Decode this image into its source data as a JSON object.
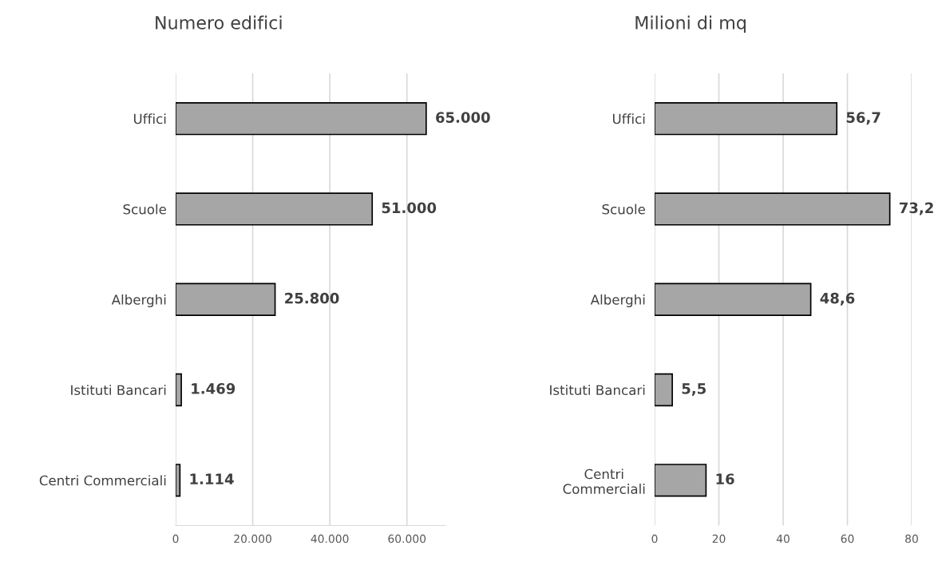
{
  "chart_data": [
    {
      "type": "bar",
      "orientation": "horizontal",
      "title": "Numero edifici",
      "categories": [
        "Uffici",
        "Scuole",
        "Alberghi",
        "Istituti Bancari",
        "Centri Commerciali"
      ],
      "values": [
        65000,
        51000,
        25800,
        1469,
        1114
      ],
      "value_labels": [
        "65.000",
        "51.000",
        "25.800",
        "1.469",
        "1.114"
      ],
      "color": "#a6a6a6",
      "xlim": [
        0,
        70000
      ],
      "xticks": [
        0,
        {
          "value": 20000,
          "label": "20.000"
        },
        {
          "value": 40000,
          "label": "40.000"
        },
        {
          "value": 60000,
          "label": "60.000"
        }
      ],
      "grid": "x",
      "legend": false
    },
    {
      "type": "bar",
      "orientation": "horizontal",
      "title": "Milioni di mq",
      "categories": [
        "Uffici",
        "Scuole",
        "Alberghi",
        "Istituti Bancari",
        "Centri\nCommerciali"
      ],
      "values": [
        56.7,
        73.2,
        48.6,
        5.5,
        16
      ],
      "value_labels": [
        "56,7",
        "73,2",
        "48,6",
        "5,5",
        "16"
      ],
      "color": "#a6a6a6",
      "xlim": [
        0,
        80
      ],
      "xticks": [
        0,
        20,
        40,
        60,
        80
      ],
      "grid": "x",
      "legend": false
    }
  ]
}
